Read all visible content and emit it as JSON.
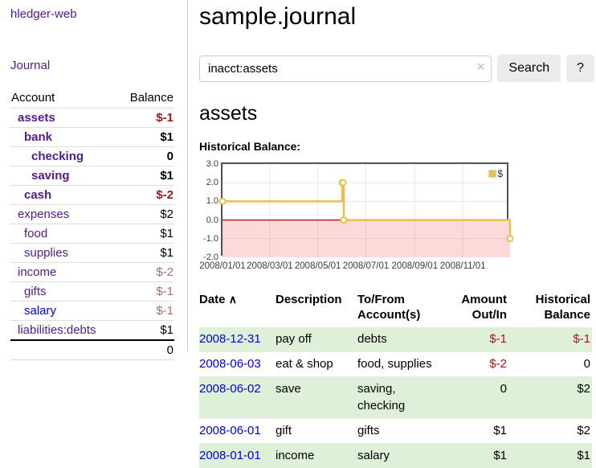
{
  "sidebar": {
    "brand": "hledger-web",
    "journal_link": "Journal",
    "table": {
      "headers": {
        "account": "Account",
        "balance": "Balance"
      },
      "accounts": [
        {
          "name": "assets",
          "balance": "$-1"
        },
        {
          "name": "bank",
          "balance": "$1"
        },
        {
          "name": "checking",
          "balance": "0"
        },
        {
          "name": "saving",
          "balance": "$1"
        },
        {
          "name": "cash",
          "balance": "$-2"
        },
        {
          "name": "expenses",
          "balance": "$2"
        },
        {
          "name": "food",
          "balance": "$1"
        },
        {
          "name": "supplies",
          "balance": "$1"
        },
        {
          "name": "income",
          "balance": "$-2"
        },
        {
          "name": "gifts",
          "balance": "$-1"
        },
        {
          "name": "salary",
          "balance": "$-1"
        },
        {
          "name": "liabilities:debts",
          "balance": "$1"
        }
      ],
      "total": "0"
    }
  },
  "main": {
    "title": "sample.journal",
    "search": {
      "query": "inacct:assets",
      "clear_icon": "×",
      "search_button": "Search",
      "help_button": "?"
    },
    "account_heading": "assets",
    "chart_label": "Historical Balance:",
    "register": {
      "headers": {
        "date": "Date",
        "sort_icon": "∧",
        "description": "Description",
        "tofrom": "To/From Account(s)",
        "amount": "Amount Out/In",
        "balance": "Historical Balance"
      },
      "rows": [
        {
          "date": "2008-12-31",
          "description": "pay off",
          "tofrom": "debts",
          "amount": "$-1",
          "balance": "$-1"
        },
        {
          "date": "2008-06-03",
          "description": "eat & shop",
          "tofrom": "food, supplies",
          "amount": "$-2",
          "balance": "0"
        },
        {
          "date": "2008-06-02",
          "description": "save",
          "tofrom": "saving, checking",
          "amount": "0",
          "balance": "$2"
        },
        {
          "date": "2008-06-01",
          "description": "gift",
          "tofrom": "gifts",
          "amount": "$1",
          "balance": "$2"
        },
        {
          "date": "2008-01-01",
          "description": "income",
          "tofrom": "salary",
          "amount": "$1",
          "balance": "$1"
        }
      ]
    }
  },
  "chart_data": {
    "type": "line",
    "step": true,
    "series": [
      {
        "name": "$",
        "x": [
          "2008-01-01",
          "2008-06-01",
          "2008-06-02",
          "2008-06-03",
          "2008-12-31"
        ],
        "y": [
          1,
          2,
          2,
          0,
          -1
        ]
      }
    ],
    "xlim": [
      "2008-01-01",
      "2008-12-31"
    ],
    "ylim": [
      -2,
      3
    ],
    "yticks": [
      "3.0",
      "2.0",
      "1.0",
      "0.0",
      "-1.0",
      "-2.0"
    ],
    "xticks": [
      "2008/01/01",
      "2008/03/01",
      "2008/05/01",
      "2008/07/01",
      "2008/09/01",
      "2008/11/01"
    ],
    "legend_position": "top-right",
    "grid": true,
    "line_color": "#e6c050",
    "marker_fill": "#ffffff",
    "negative_region_color": "#fcdada",
    "zero_line_color": "#bb0000",
    "border_color": "#545454"
  }
}
